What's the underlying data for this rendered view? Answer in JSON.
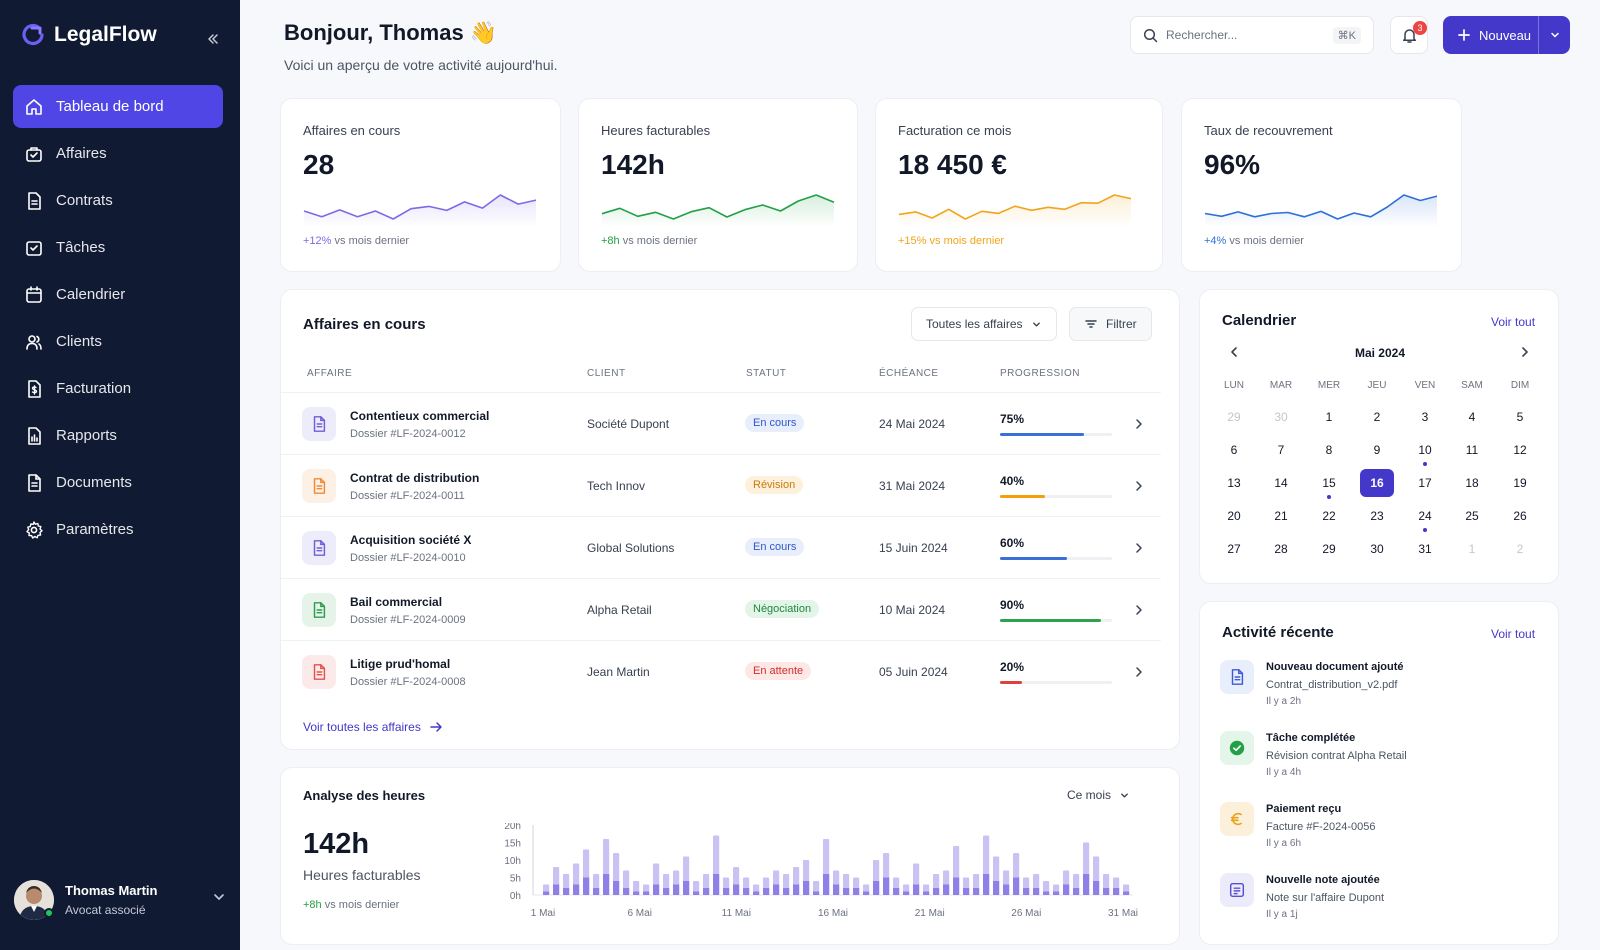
{
  "app": {
    "name": "LegalFlow"
  },
  "sidebar": {
    "items": [
      {
        "label": "Tableau de bord",
        "icon": "home-icon",
        "active": true
      },
      {
        "label": "Affaires",
        "icon": "briefcase-icon"
      },
      {
        "label": "Contrats",
        "icon": "contract-icon"
      },
      {
        "label": "Tâches",
        "icon": "task-check-icon"
      },
      {
        "label": "Calendrier",
        "icon": "calendar-icon"
      },
      {
        "label": "Clients",
        "icon": "users-icon"
      },
      {
        "label": "Facturation",
        "icon": "invoice-icon"
      },
      {
        "label": "Rapports",
        "icon": "report-icon"
      },
      {
        "label": "Documents",
        "icon": "document-icon"
      },
      {
        "label": "Paramètres",
        "icon": "gear-icon"
      }
    ],
    "user": {
      "name": "Thomas Martin",
      "role": "Avocat associé"
    }
  },
  "header": {
    "greeting": "Bonjour, Thomas",
    "emoji": "👋",
    "subtitle": "Voici un aperçu de votre activité aujourd'hui.",
    "search_placeholder": "Rechercher...",
    "search_shortcut": "⌘K",
    "notifications_count": "3",
    "new_label": "Nouveau"
  },
  "kpis": [
    {
      "label": "Affaires en cours",
      "value": "28",
      "delta": "+12%",
      "delta_suffix": "vs mois dernier",
      "color": "#7c6be6",
      "spark": [
        4,
        3,
        4.2,
        3,
        4,
        2.6,
        4.4,
        4.8,
        4.1,
        5.6,
        4.5,
        6.8,
        5.2,
        5.9
      ]
    },
    {
      "label": "Heures facturables",
      "value": "142h",
      "delta": "+8h",
      "delta_suffix": "vs mois dernier",
      "color": "#22a047",
      "spark": [
        4,
        4.8,
        3.6,
        4.2,
        3.2,
        4.3,
        4.9,
        3.5,
        4.6,
        5.3,
        4.4,
        5.9,
        6.8,
        5.7
      ]
    },
    {
      "label": "Facturation ce mois",
      "value": "18 450 €",
      "delta": "+15%",
      "delta_suffix": "vs mois dernier",
      "color": "#f0a51c",
      "spark": [
        4,
        4.5,
        3.3,
        5,
        3.1,
        4.6,
        4.2,
        5.6,
        4.8,
        5.4,
        5,
        6.3,
        6.2,
        7.8,
        7.1
      ]
    },
    {
      "label": "Taux de recouvrement",
      "value": "96%",
      "delta": "+4%",
      "delta_suffix": "vs mois dernier",
      "color": "#2f6fd6",
      "spark": [
        4.2,
        3.7,
        4.5,
        3.6,
        4.2,
        4.4,
        3.6,
        4.6,
        3.2,
        4.3,
        3.6,
        5.4,
        7.6,
        6.6,
        7.4
      ]
    }
  ],
  "matters": {
    "title": "Affaires en cours",
    "filter_select": "Toutes les affaires",
    "filter_button": "Filtrer",
    "columns": [
      "AFFAIRE",
      "CLIENT",
      "STATUT",
      "ÉCHÉANCE",
      "PROGRESSION"
    ],
    "rows": [
      {
        "title": "Contentieux commercial",
        "ref": "Dossier #LF-2024-0012",
        "client": "Société Dupont",
        "status": "En cours",
        "due": "24 Mai 2024",
        "progress": 75,
        "progress_label": "75%",
        "accent": "#6d5fd6",
        "status_bg": "#e8eefc",
        "status_fg": "#2f57c9",
        "bar": "#3b6fd8"
      },
      {
        "title": "Contrat de distribution",
        "ref": "Dossier #LF-2024-0011",
        "client": "Tech Innov",
        "status": "Révision",
        "due": "31 Mai 2024",
        "progress": 40,
        "progress_label": "40%",
        "accent": "#f08a34",
        "status_bg": "#fdf1dc",
        "status_fg": "#c7780c",
        "bar": "#f59e0b"
      },
      {
        "title": "Acquisition société X",
        "ref": "Dossier #LF-2024-0010",
        "client": "Global Solutions",
        "status": "En cours",
        "due": "15 Juin 2024",
        "progress": 60,
        "progress_label": "60%",
        "accent": "#6d5fd6",
        "status_bg": "#e8eefc",
        "status_fg": "#2f57c9",
        "bar": "#3b6fd8"
      },
      {
        "title": "Bail commercial",
        "ref": "Dossier #LF-2024-0009",
        "client": "Alpha Retail",
        "status": "Négociation",
        "due": "10 Mai 2024",
        "progress": 90,
        "progress_label": "90%",
        "accent": "#2e9b4e",
        "status_bg": "#e3f5e8",
        "status_fg": "#22863f",
        "bar": "#2fa24f"
      },
      {
        "title": "Litige prud'homal",
        "ref": "Dossier #LF-2024-0008",
        "client": "Jean Martin",
        "status": "En attente",
        "due": "05 Juin 2024",
        "progress": 20,
        "progress_label": "20%",
        "accent": "#e2524c",
        "status_bg": "#fde8e7",
        "status_fg": "#cf2f28",
        "bar": "#e0403a"
      }
    ],
    "view_all": "Voir toutes les affaires"
  },
  "hours": {
    "title": "Analyse des heures",
    "period": "Ce mois",
    "value": "142h",
    "label": "Heures facturables",
    "delta": "+8h",
    "delta_suffix": "vs mois dernier",
    "chart_data": {
      "type": "bar",
      "series": [
        {
          "values": [
            3,
            8,
            6,
            9,
            13,
            6,
            16,
            12,
            7,
            4,
            3,
            9,
            6,
            7,
            11,
            4,
            6,
            17,
            5,
            8,
            5,
            3,
            5,
            7,
            6,
            8,
            10,
            4,
            16,
            7,
            6,
            5,
            3,
            10,
            12,
            5,
            3,
            9,
            3,
            6,
            7,
            14,
            5,
            6,
            17,
            11,
            7,
            12,
            5,
            6,
            4,
            3,
            7,
            6,
            15,
            11,
            6,
            5,
            3
          ]
        },
        {
          "values": [
            1,
            3,
            2,
            3,
            5,
            2,
            6,
            4,
            2,
            1,
            1,
            3,
            2,
            3,
            4,
            1,
            2,
            6,
            2,
            3,
            2,
            1,
            2,
            3,
            2,
            3,
            4,
            1,
            6,
            3,
            2,
            2,
            1,
            4,
            5,
            2,
            1,
            3,
            1,
            2,
            3,
            5,
            2,
            2,
            6,
            4,
            3,
            5,
            2,
            2,
            1,
            1,
            3,
            2,
            6,
            4,
            2,
            2,
            1
          ]
        }
      ],
      "x_tick_labels": [
        "1 Mai",
        "6 Mai",
        "11 Mai",
        "16 Mai",
        "21 Mai",
        "26 Mai",
        "31 Mai"
      ],
      "y_tick_labels": [
        "20h",
        "15h",
        "10h",
        "5h",
        "0h"
      ],
      "ylim": [
        0,
        20
      ]
    }
  },
  "calendar": {
    "title": "Calendrier",
    "view_all": "Voir tout",
    "month": "Mai 2024",
    "weekdays": [
      "LUN",
      "MAR",
      "MER",
      "JEU",
      "VEN",
      "SAM",
      "DIM"
    ],
    "days": [
      {
        "d": "29",
        "muted": true
      },
      {
        "d": "30",
        "muted": true
      },
      {
        "d": "1"
      },
      {
        "d": "2"
      },
      {
        "d": "3"
      },
      {
        "d": "4"
      },
      {
        "d": "5"
      },
      {
        "d": "6"
      },
      {
        "d": "7"
      },
      {
        "d": "8"
      },
      {
        "d": "9"
      },
      {
        "d": "10",
        "dot": true
      },
      {
        "d": "11"
      },
      {
        "d": "12"
      },
      {
        "d": "13"
      },
      {
        "d": "14"
      },
      {
        "d": "15",
        "dot": true
      },
      {
        "d": "16",
        "selected": true
      },
      {
        "d": "17"
      },
      {
        "d": "18"
      },
      {
        "d": "19"
      },
      {
        "d": "20"
      },
      {
        "d": "21"
      },
      {
        "d": "22"
      },
      {
        "d": "23"
      },
      {
        "d": "24",
        "dot": true
      },
      {
        "d": "25"
      },
      {
        "d": "26"
      },
      {
        "d": "27"
      },
      {
        "d": "28"
      },
      {
        "d": "29"
      },
      {
        "d": "30"
      },
      {
        "d": "31"
      },
      {
        "d": "1",
        "muted": true
      },
      {
        "d": "2",
        "muted": true
      }
    ]
  },
  "activity": {
    "title": "Activité récente",
    "view_all": "Voir tout",
    "items": [
      {
        "title": "Nouveau document ajouté",
        "desc": "Contrat_distribution_v2.pdf",
        "time": "Il y a 2h",
        "icon": "document-icon",
        "bg": "#e8eefc",
        "fg": "#3b5bd6"
      },
      {
        "title": "Tâche complétée",
        "desc": "Révision contrat Alpha Retail",
        "time": "Il y a 4h",
        "icon": "check-circle-icon",
        "bg": "#e4f5e9",
        "fg": "#22a047"
      },
      {
        "title": "Paiement reçu",
        "desc": "Facture #F-2024-0056",
        "time": "Il y a 6h",
        "icon": "euro-icon",
        "bg": "#fdf0da",
        "fg": "#e8a21a"
      },
      {
        "title": "Nouvelle note ajoutée",
        "desc": "Note sur l'affaire Dupont",
        "time": "Il y a 1j",
        "icon": "note-icon",
        "bg": "#ecebfb",
        "fg": "#5b4fd1"
      }
    ]
  }
}
